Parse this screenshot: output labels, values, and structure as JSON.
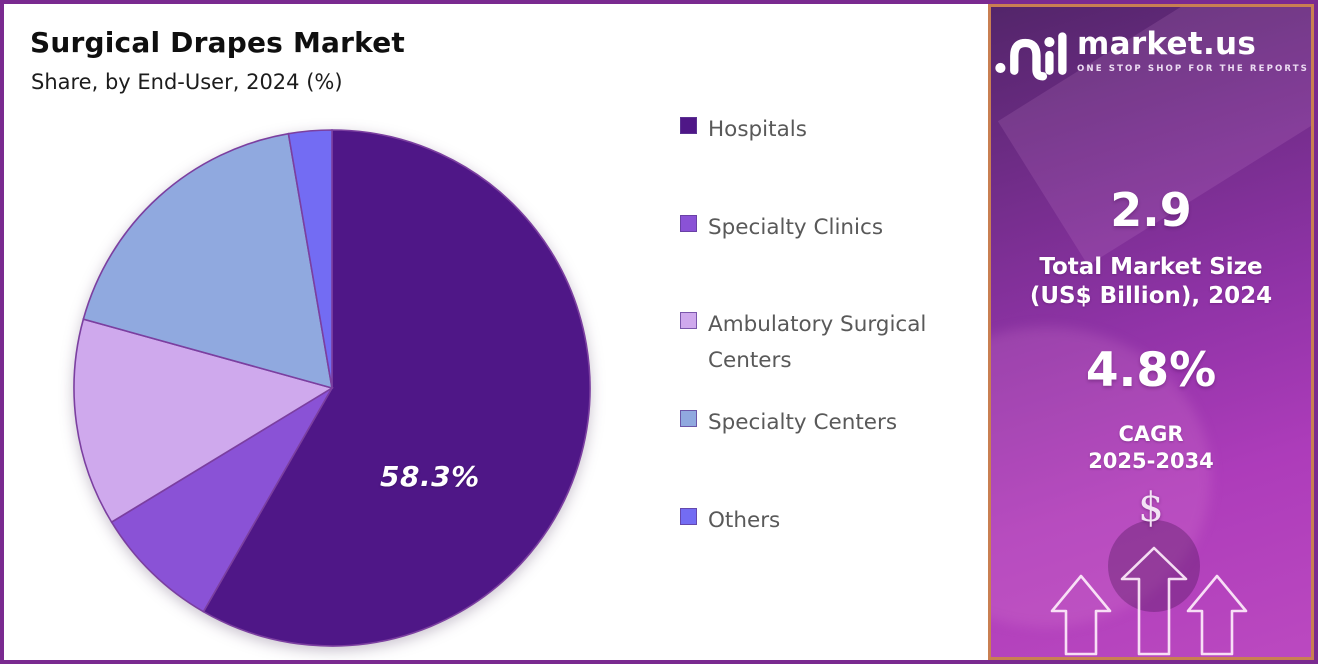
{
  "header": {
    "title": "Surgical Drapes Market",
    "subtitle": "Share, by End-User, 2024 (%)"
  },
  "chart_data": {
    "type": "pie",
    "title": "Surgical Drapes Market",
    "subtitle": "Share, by End-User, 2024 (%)",
    "unit": "%",
    "legend_position": "right",
    "slice_stroke": "#7b3fa0",
    "slices": [
      {
        "label": "Hospitals",
        "value": 58.3,
        "color": "#4f1787",
        "data_label": "58.3%"
      },
      {
        "label": "Specialty Clinics",
        "value": 8.0,
        "color": "#8a52d6"
      },
      {
        "label": "Ambulatory Surgical Centers",
        "value": 13.0,
        "color": "#cfa9ed"
      },
      {
        "label": "Specialty Centers",
        "value": 18.0,
        "color": "#90a9df"
      },
      {
        "label": "Others",
        "value": 2.7,
        "color": "#736cf3"
      }
    ]
  },
  "sidebar": {
    "brand": "market.us",
    "tagline": "ONE STOP SHOP FOR THE REPORTS",
    "market_size_value": "2.9",
    "market_size_label": "Total Market Size (US$ Billion), 2024",
    "market_size_label_line1": "Total Market Size",
    "market_size_label_line2": "(US$ Billion), 2024",
    "cagr_value": "4.8%",
    "cagr_label_line1": "CAGR",
    "cagr_label_line2": "2025-2034",
    "dollar_symbol": "$",
    "accent_border_color": "#c97f52",
    "panel_gradient_start": "#53256a",
    "panel_gradient_end": "#bb49c0"
  }
}
